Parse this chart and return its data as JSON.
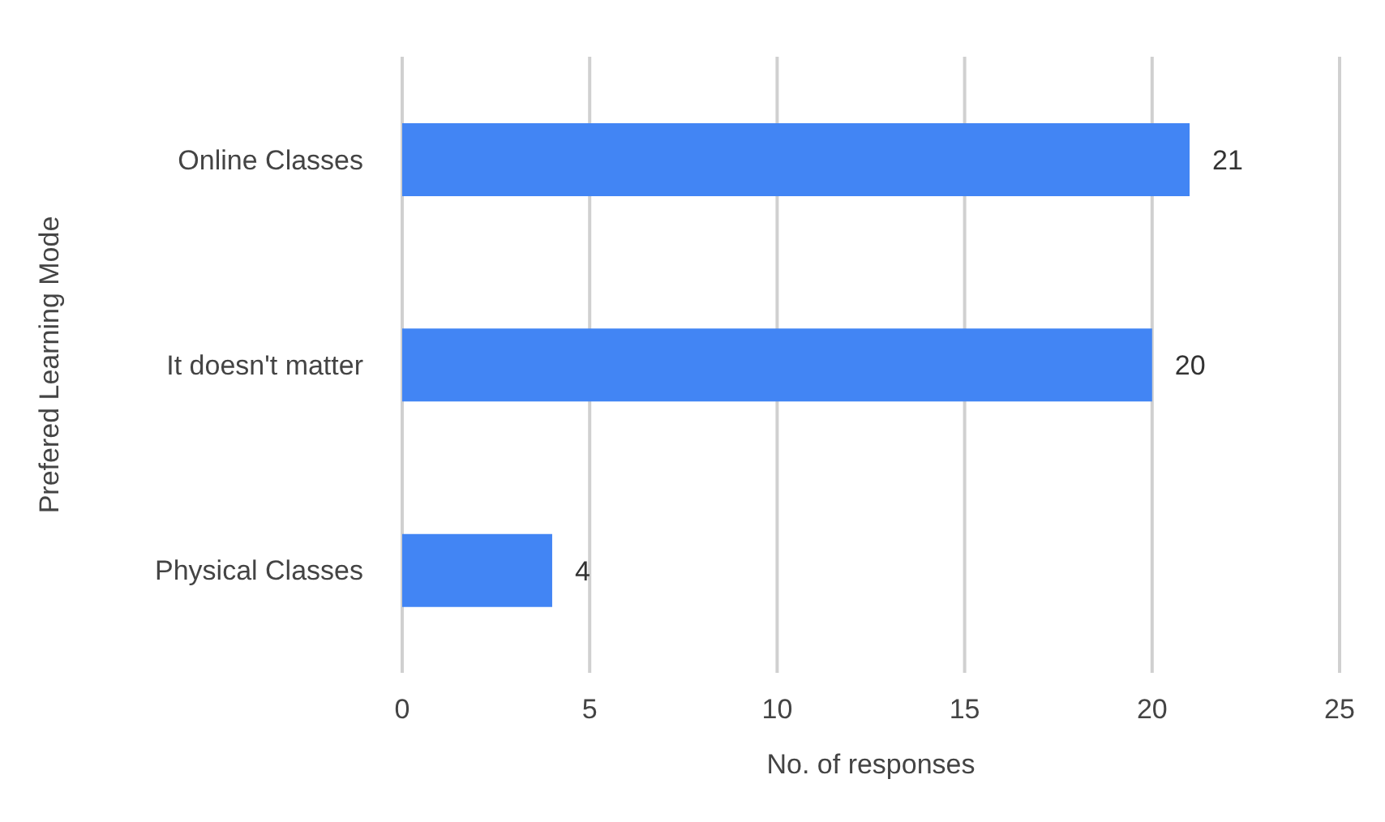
{
  "chart_data": {
    "type": "bar",
    "orientation": "horizontal",
    "xlabel": "No. of responses",
    "ylabel": "Prefered Learning Mode",
    "categories": [
      "Online Classes",
      "It doesn't matter",
      "Physical Classes"
    ],
    "values": [
      21,
      20,
      4
    ],
    "color": "#4285f4",
    "data_labels": true,
    "xlim": [
      0,
      25
    ],
    "xticks": [
      0,
      5,
      10,
      15,
      20,
      25
    ],
    "grid": "x",
    "legend": false
  }
}
